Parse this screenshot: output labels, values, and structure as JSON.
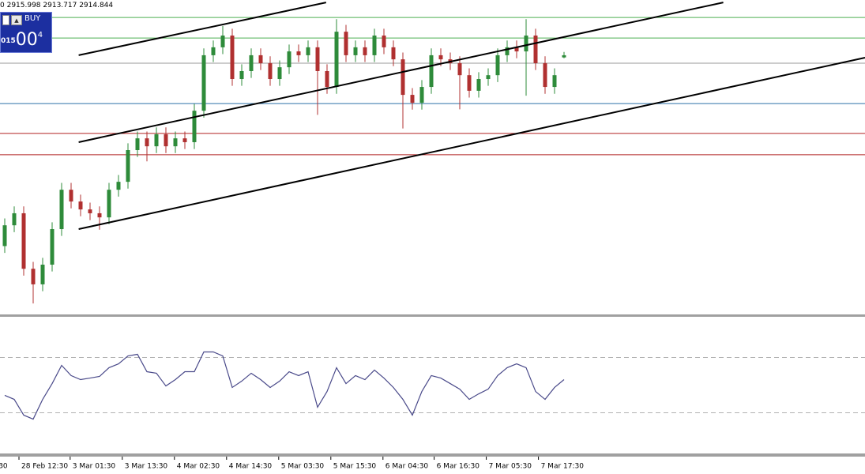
{
  "header": {
    "ohlc": "0 2915.998 2913.717 2914.844"
  },
  "trade_panel": {
    "button": "BUY",
    "price_small": "015",
    "price_big": "00",
    "price_sup": "4"
  },
  "chart_data": [
    {
      "type": "candlestick",
      "open": [
        2845.0,
        2852.6,
        2857.0,
        2836.7,
        2831.0,
        2838.2,
        2851.2,
        2865.6,
        2861.3,
        2858.4,
        2857.0,
        2855.5,
        2865.6,
        2868.5,
        2880.1,
        2884.4,
        2881.5,
        2885.9,
        2881.5,
        2884.4,
        2883.0,
        2894.5,
        2914.8,
        2917.7,
        2922.0,
        2906.1,
        2909.0,
        2914.8,
        2911.9,
        2906.1,
        2910.4,
        2916.2,
        2914.8,
        2917.7,
        2909.0,
        2903.2,
        2923.4,
        2914.8,
        2917.7,
        2914.8,
        2922.0,
        2917.7,
        2913.3,
        2900.3,
        2897.4,
        2903.2,
        2914.8,
        2913.3,
        2911.9,
        2907.5,
        2901.8,
        2906.1,
        2907.5,
        2914.8,
        2917.7,
        2916.2,
        2922.0,
        2911.9,
        2903.2,
        2914.0
      ],
      "high": [
        2855.1,
        2859.5,
        2859.5,
        2839.2,
        2840.7,
        2853.7,
        2868.1,
        2868.1,
        2863.8,
        2860.9,
        2859.5,
        2868.1,
        2871.0,
        2882.6,
        2886.9,
        2886.9,
        2888.4,
        2888.4,
        2886.9,
        2886.9,
        2897.0,
        2917.3,
        2920.2,
        2925.5,
        2924.5,
        2911.5,
        2917.3,
        2917.3,
        2914.4,
        2912.9,
        2918.7,
        2918.7,
        2920.2,
        2920.2,
        2911.5,
        2928.0,
        2925.9,
        2920.2,
        2920.2,
        2924.5,
        2924.5,
        2920.2,
        2915.8,
        2902.8,
        2905.7,
        2917.3,
        2917.3,
        2915.8,
        2914.4,
        2910.0,
        2908.6,
        2910.0,
        2917.3,
        2920.2,
        2920.2,
        2928.0,
        2924.5,
        2914.4,
        2910.0,
        2916.0
      ],
      "low": [
        2842.5,
        2850.1,
        2834.2,
        2824.0,
        2828.5,
        2835.7,
        2848.7,
        2858.8,
        2855.9,
        2854.5,
        2851.0,
        2853.0,
        2863.1,
        2866.0,
        2877.6,
        2876.0,
        2879.0,
        2879.0,
        2879.0,
        2880.5,
        2880.5,
        2892.0,
        2912.3,
        2915.2,
        2903.6,
        2903.6,
        2906.5,
        2909.4,
        2903.6,
        2903.6,
        2907.9,
        2912.3,
        2912.3,
        2893.0,
        2900.7,
        2900.7,
        2912.3,
        2912.3,
        2912.3,
        2912.3,
        2915.2,
        2910.8,
        2888.0,
        2894.9,
        2894.9,
        2900.7,
        2910.8,
        2909.4,
        2895.0,
        2899.3,
        2899.3,
        2903.6,
        2905.0,
        2912.3,
        2913.7,
        2900.0,
        2909.4,
        2900.7,
        2900.7,
        2913.7
      ],
      "close": [
        2852.6,
        2857.0,
        2836.7,
        2831.0,
        2838.2,
        2851.2,
        2865.6,
        2861.3,
        2858.4,
        2857.0,
        2855.5,
        2865.6,
        2868.5,
        2880.1,
        2884.4,
        2881.5,
        2885.9,
        2881.5,
        2884.4,
        2883.0,
        2894.5,
        2914.8,
        2917.7,
        2922.0,
        2906.1,
        2909.0,
        2914.8,
        2911.9,
        2906.1,
        2910.4,
        2916.2,
        2914.8,
        2917.7,
        2909.0,
        2903.2,
        2923.4,
        2914.8,
        2917.7,
        2914.8,
        2922.0,
        2917.7,
        2913.3,
        2900.3,
        2897.4,
        2903.2,
        2914.8,
        2913.3,
        2911.9,
        2907.5,
        2901.8,
        2906.1,
        2907.5,
        2914.8,
        2917.7,
        2916.2,
        2922.0,
        2911.9,
        2903.2,
        2907.5,
        2914.8
      ],
      "up_color": "#2e8b3a",
      "down_color": "#b03030",
      "xlim": [
        -0.5,
        90.75
      ],
      "ylim": [
        2820,
        2935
      ],
      "hlines": [
        {
          "value": 2928.6,
          "color": "#4caf50"
        },
        {
          "value": 2921.1,
          "color": "#4caf50"
        },
        {
          "value": 2911.9,
          "color": "#9a9a9a"
        },
        {
          "value": 2897.1,
          "color": "#2a6fa8"
        },
        {
          "value": 2886.2,
          "color": "#b02020"
        },
        {
          "value": 2878.4,
          "color": "#b02020"
        }
      ],
      "trendlines": [
        {
          "x": [
            7.8,
            33.9
          ],
          "y": [
            2914.8,
            2934.1
          ]
        },
        {
          "x": [
            7.8,
            75.8
          ],
          "y": [
            2883.0,
            2934.1
          ]
        },
        {
          "x": [
            7.8,
            90.75
          ],
          "y": [
            2851.2,
            2913.9
          ]
        }
      ],
      "trendline_color": "#000000",
      "xticks": [
        {
          "value": -0.9,
          "label": "30"
        },
        {
          "value": 1.5,
          "label": "28 Feb 12:30"
        },
        {
          "value": 6.9,
          "label": "3 Mar 01:30"
        },
        {
          "value": 12.4,
          "label": "3 Mar 13:30"
        },
        {
          "value": 17.9,
          "label": "4 Mar 02:30"
        },
        {
          "value": 23.4,
          "label": "4 Mar 14:30"
        },
        {
          "value": 28.9,
          "label": "5 Mar 03:30"
        },
        {
          "value": 34.4,
          "label": "5 Mar 15:30"
        },
        {
          "value": 39.9,
          "label": "6 Mar 04:30"
        },
        {
          "value": 45.3,
          "label": "6 Mar 16:30"
        },
        {
          "value": 50.8,
          "label": "7 Mar 05:30"
        },
        {
          "value": 56.3,
          "label": "7 Mar 17:30"
        }
      ]
    },
    {
      "type": "line",
      "values": [
        42.6,
        39.7,
        28.3,
        25.4,
        39.7,
        51.1,
        64.3,
        56.9,
        54.0,
        55.1,
        56.3,
        62.6,
        65.4,
        71.1,
        72.3,
        59.7,
        58.6,
        49.4,
        54.0,
        59.7,
        59.7,
        74.0,
        74.0,
        71.1,
        48.3,
        52.9,
        58.6,
        54.0,
        48.3,
        52.9,
        59.7,
        56.9,
        59.7,
        34.0,
        45.4,
        62.6,
        51.1,
        56.9,
        54.0,
        60.9,
        55.1,
        48.3,
        39.7,
        28.3,
        45.4,
        56.9,
        55.1,
        51.1,
        47.1,
        39.7,
        43.7,
        47.1,
        56.9,
        62.6,
        65.4,
        62.6,
        45.4,
        39.7,
        48.3,
        54.0
      ],
      "color": "#4a4a8a",
      "xlim": [
        -0.5,
        90.75
      ],
      "ylim": [
        0,
        100
      ],
      "levels": [
        70,
        30
      ],
      "level_color": "#b0b0b0"
    }
  ]
}
